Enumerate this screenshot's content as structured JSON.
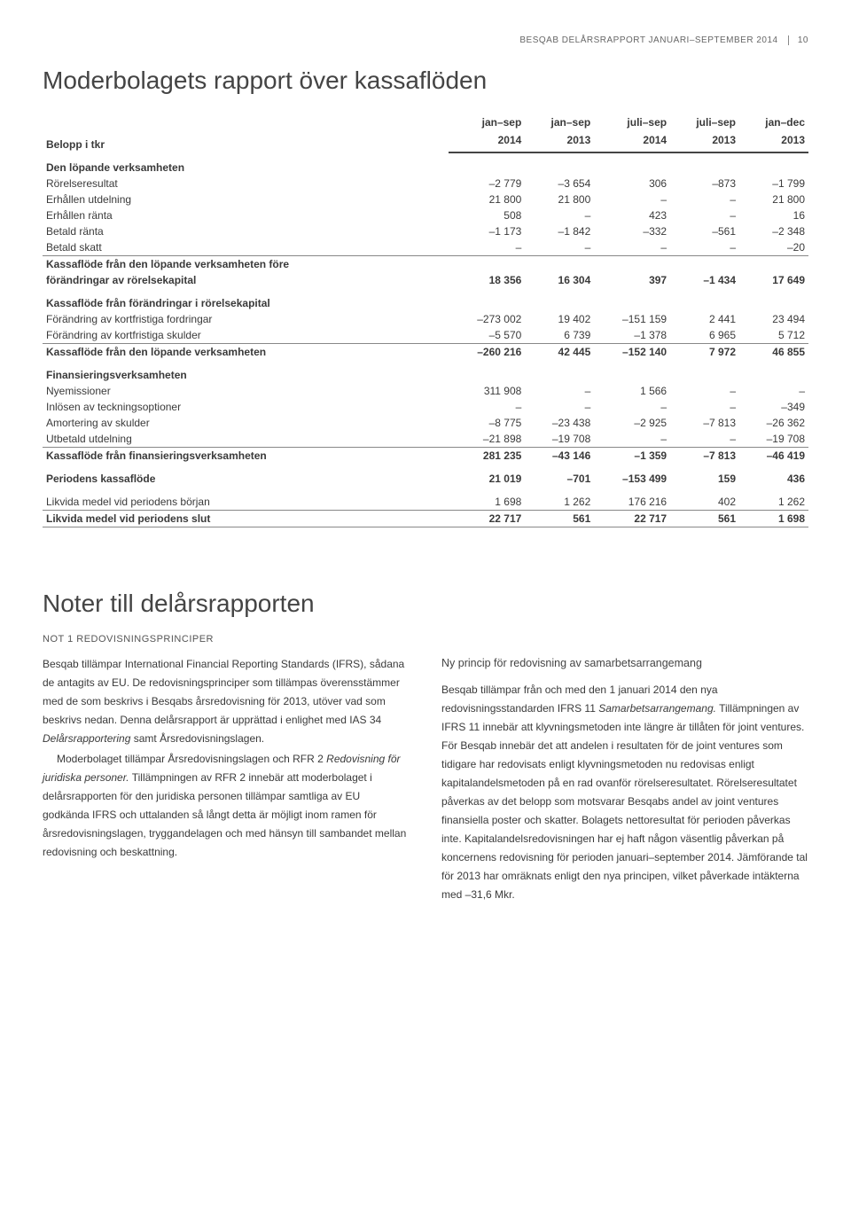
{
  "header": {
    "text": "BESQAB DELÅRSRAPPORT JANUARI–SEPTEMBER 2014",
    "page": "10"
  },
  "table": {
    "title": "Moderbolagets rapport över kassaflöden",
    "label_header": "Belopp i tkr",
    "columns": [
      {
        "l1": "jan–sep",
        "l2": "2014"
      },
      {
        "l1": "jan–sep",
        "l2": "2013"
      },
      {
        "l1": "juli–sep",
        "l2": "2014"
      },
      {
        "l1": "juli–sep",
        "l2": "2013"
      },
      {
        "l1": "jan–dec",
        "l2": "2013"
      }
    ],
    "rows": [
      {
        "type": "section",
        "label": "Den löpande verksamheten",
        "c": [
          "",
          "",
          "",
          "",
          ""
        ]
      },
      {
        "type": "data",
        "label": "Rörelseresultat",
        "c": [
          "–2 779",
          "–3 654",
          "306",
          "–873",
          "–1 799"
        ]
      },
      {
        "type": "data",
        "label": "Erhållen utdelning",
        "c": [
          "21 800",
          "21 800",
          "–",
          "–",
          "21 800"
        ]
      },
      {
        "type": "data",
        "label": "Erhållen ränta",
        "c": [
          "508",
          "–",
          "423",
          "–",
          "16"
        ]
      },
      {
        "type": "data",
        "label": "Betald ränta",
        "c": [
          "–1 173",
          "–1 842",
          "–332",
          "–561",
          "–2 348"
        ]
      },
      {
        "type": "data",
        "label": "Betald skatt",
        "c": [
          "–",
          "–",
          "–",
          "–",
          "–20"
        ],
        "divider": true
      },
      {
        "type": "bold",
        "label": "Kassaflöde från den löpande verksamheten före",
        "c": [
          "",
          "",
          "",
          "",
          ""
        ]
      },
      {
        "type": "bold",
        "label": "förändringar av rörelsekapital",
        "c": [
          "18 356",
          "16 304",
          "397",
          "–1 434",
          "17 649"
        ]
      },
      {
        "type": "section",
        "label": "Kassaflöde från förändringar i rörelsekapital",
        "c": [
          "",
          "",
          "",
          "",
          ""
        ]
      },
      {
        "type": "data",
        "label": "Förändring av kortfristiga fordringar",
        "c": [
          "–273 002",
          "19 402",
          "–151 159",
          "2 441",
          "23 494"
        ]
      },
      {
        "type": "data",
        "label": "Förändring av kortfristiga skulder",
        "c": [
          "–5 570",
          "6 739",
          "–1 378",
          "6 965",
          "5 712"
        ],
        "divider": true
      },
      {
        "type": "bold",
        "label": "Kassaflöde från den löpande verksamheten",
        "c": [
          "–260 216",
          "42 445",
          "–152 140",
          "7 972",
          "46 855"
        ]
      },
      {
        "type": "section",
        "label": "Finansieringsverksamheten",
        "c": [
          "",
          "",
          "",
          "",
          ""
        ]
      },
      {
        "type": "data",
        "label": "Nyemissioner",
        "c": [
          "311 908",
          "–",
          "1 566",
          "–",
          "–"
        ]
      },
      {
        "type": "data",
        "label": "Inlösen av teckningsoptioner",
        "c": [
          "–",
          "–",
          "–",
          "–",
          "–349"
        ]
      },
      {
        "type": "data",
        "label": "Amortering av skulder",
        "c": [
          "–8 775",
          "–23 438",
          "–2 925",
          "–7 813",
          "–26 362"
        ]
      },
      {
        "type": "data",
        "label": "Utbetald utdelning",
        "c": [
          "–21 898",
          "–19 708",
          "–",
          "–",
          "–19 708"
        ],
        "divider": true
      },
      {
        "type": "bold",
        "label": "Kassaflöde från finansieringsverksamheten",
        "c": [
          "281 235",
          "–43 146",
          "–1 359",
          "–7 813",
          "–46 419"
        ]
      },
      {
        "type": "bold",
        "label": "Periodens kassaflöde",
        "c": [
          "21 019",
          "–701",
          "–153 499",
          "159",
          "436"
        ],
        "spacer": true
      },
      {
        "type": "data",
        "label": "Likvida medel vid periodens början",
        "c": [
          "1 698",
          "1 262",
          "176 216",
          "402",
          "1 262"
        ],
        "spacer": true,
        "divider": true
      },
      {
        "type": "bold",
        "label": "Likvida medel vid periodens slut",
        "c": [
          "22 717",
          "561",
          "22 717",
          "561",
          "1 698"
        ],
        "divider": true
      }
    ]
  },
  "notes": {
    "title": "Noter till delårsrapporten",
    "heading": "NOT 1  REDOVISNINGSPRINCIPER",
    "left_p1": "Besqab tillämpar International Financial Reporting Standards (IFRS), sådana de antagits av EU. De redovisningsprinciper som tillämpas överensstämmer med de som beskrivs i Besqabs årsredovisning för 2013, utöver vad som beskrivs nedan. Denna delårsrapport är upprättad i enlighet med IAS 34 ",
    "left_p1_i1": "Delårsrapportering",
    "left_p1b": " samt Årsredovisningslagen.",
    "left_p2a": "Moderbolaget tillämpar Årsredovisningslagen och RFR 2 ",
    "left_p2_i1": "Redovisning för juridiska personer.",
    "left_p2b": " Tillämpningen av RFR 2 innebär att moderbolaget i delårsrapporten för den juridiska personen tillämpar samtliga av EU godkända IFRS och uttalanden så långt detta är möjligt inom ramen för årsredovisningslagen, tryggandelagen och med hänsyn till sambandet mellan redovisning och beskattning.",
    "right_sub": "Ny princip för redovisning av samarbetsarrangemang",
    "right_p1a": "Besqab tillämpar från och med den 1 januari 2014 den nya redovisningsstandarden IFRS 11 ",
    "right_p1_i1": "Samarbetsarrangemang.",
    "right_p1b": " Tillämpningen av IFRS 11 innebär att klyvningsmetoden inte längre är tillåten för joint ventures. För Besqab innebär det att andelen i resultaten för de joint ventures som tidigare har redovisats enligt klyvningsmetoden nu redovisas enligt kapitalandelsmetoden på en rad ovanför rörelseresultatet. Rörelseresultatet påverkas av det belopp som motsvarar Besqabs andel av joint ventures finansiella poster och skatter. Bolagets nettoresultat för perioden påverkas inte. Kapitalandelsredovisningen har ej haft någon väsentlig påverkan på koncernens redovisning för perioden januari–september 2014. Jämförande tal för 2013 har omräknats enligt den nya principen, vilket påverkade intäkterna med –31,6 Mkr."
  }
}
